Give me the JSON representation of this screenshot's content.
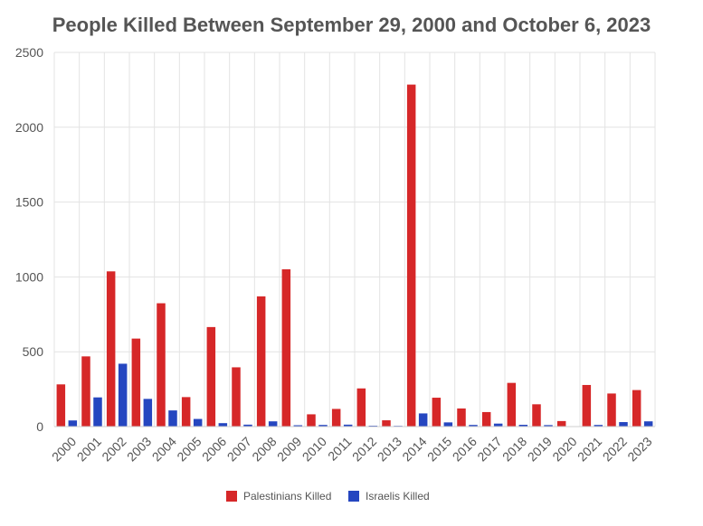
{
  "chart_data": {
    "type": "bar",
    "title": "People Killed Between September 29, 2000 and October 6, 2023",
    "categories": [
      "2000",
      "2001",
      "2002",
      "2003",
      "2004",
      "2005",
      "2006",
      "2007",
      "2008",
      "2009",
      "2010",
      "2011",
      "2012",
      "2013",
      "2014",
      "2015",
      "2016",
      "2017",
      "2018",
      "2019",
      "2020",
      "2021",
      "2022",
      "2023"
    ],
    "series": [
      {
        "name": "Palestinians Killed",
        "color": "#d62728",
        "values": [
          282,
          469,
          1037,
          588,
          824,
          197,
          665,
          396,
          870,
          1051,
          82,
          118,
          255,
          42,
          2285,
          193,
          121,
          97,
          292,
          149,
          37,
          278,
          221,
          244
        ]
      },
      {
        "name": "Israelis Killed",
        "color": "#2546c0",
        "values": [
          41,
          195,
          420,
          185,
          108,
          51,
          23,
          13,
          35,
          9,
          11,
          13,
          6,
          5,
          88,
          28,
          11,
          20,
          12,
          10,
          3,
          11,
          30,
          35
        ]
      }
    ],
    "ylim": [
      0,
      2500
    ],
    "yticks": [
      0,
      500,
      1000,
      1500,
      2000,
      2500
    ],
    "grid": true,
    "legend": "bottom-center"
  }
}
